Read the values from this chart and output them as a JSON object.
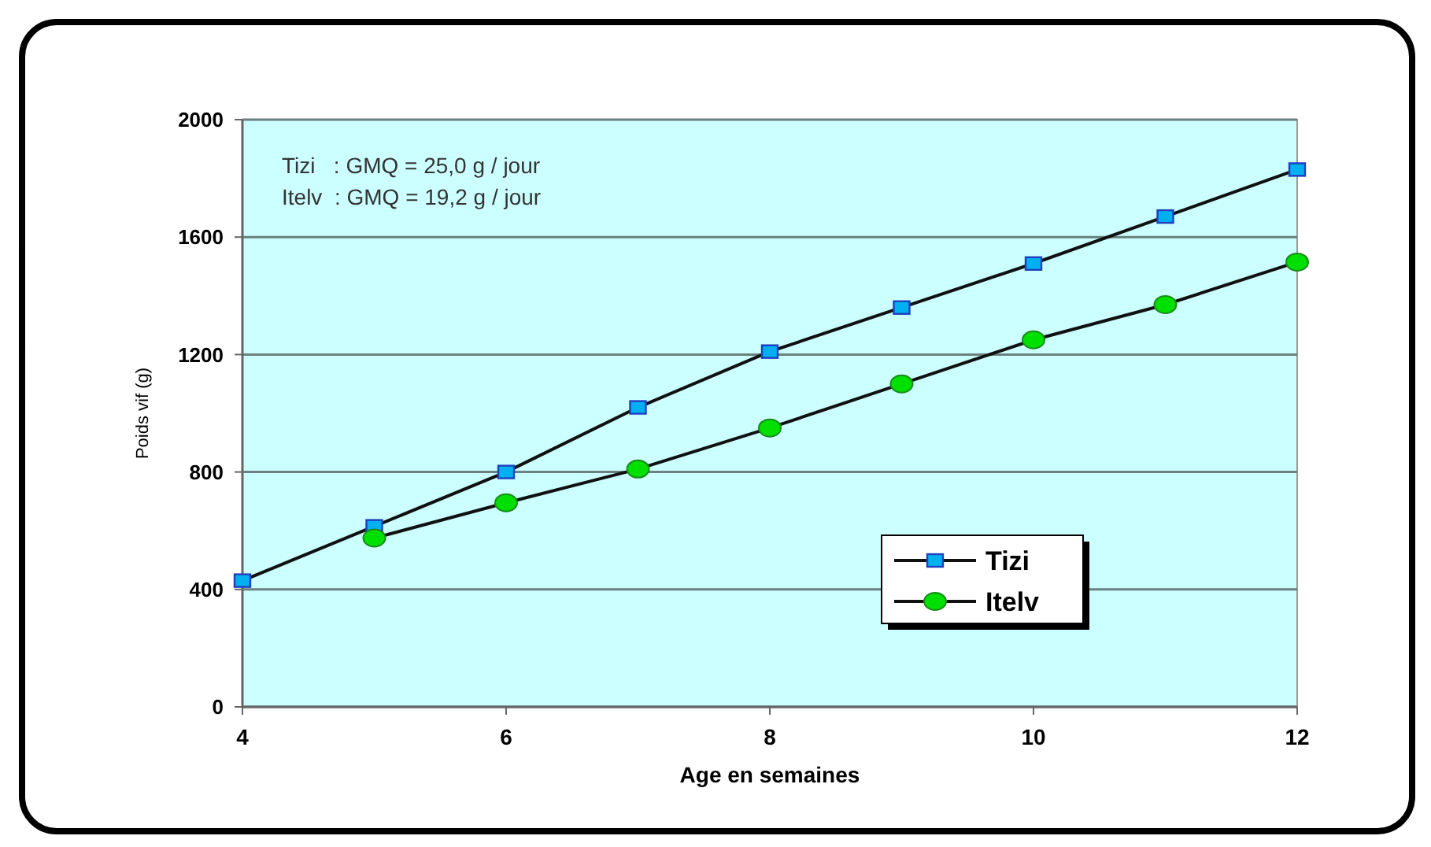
{
  "chart_data": {
    "type": "line",
    "xlabel": "Age en semaines",
    "ylabel": "Poids vif (g)",
    "xlim": [
      4,
      12
    ],
    "xticks": [
      4,
      6,
      8,
      10,
      12
    ],
    "ylim": [
      0,
      2000
    ],
    "yticks": [
      0,
      400,
      800,
      1200,
      1600,
      2000
    ],
    "grid": "y",
    "legend": "right",
    "line_style": "solid",
    "annotations": [
      "Tizi   : GMQ = 25,0 g / jour",
      "Itelv  : GMQ = 19,2 g / jour"
    ],
    "series": [
      {
        "name": "Tizi",
        "color": "#00b0f0",
        "marker": "square",
        "x": [
          4,
          5,
          6,
          7,
          8,
          9,
          10,
          11,
          12
        ],
        "values": [
          430,
          615,
          800,
          1020,
          1210,
          1360,
          1510,
          1670,
          1830
        ]
      },
      {
        "name": "Itelv",
        "color": "#00e000",
        "marker": "circle",
        "x": [
          5,
          6,
          7,
          8,
          9,
          10,
          11,
          12
        ],
        "values": [
          575,
          695,
          810,
          950,
          1100,
          1250,
          1370,
          1515
        ]
      }
    ]
  }
}
